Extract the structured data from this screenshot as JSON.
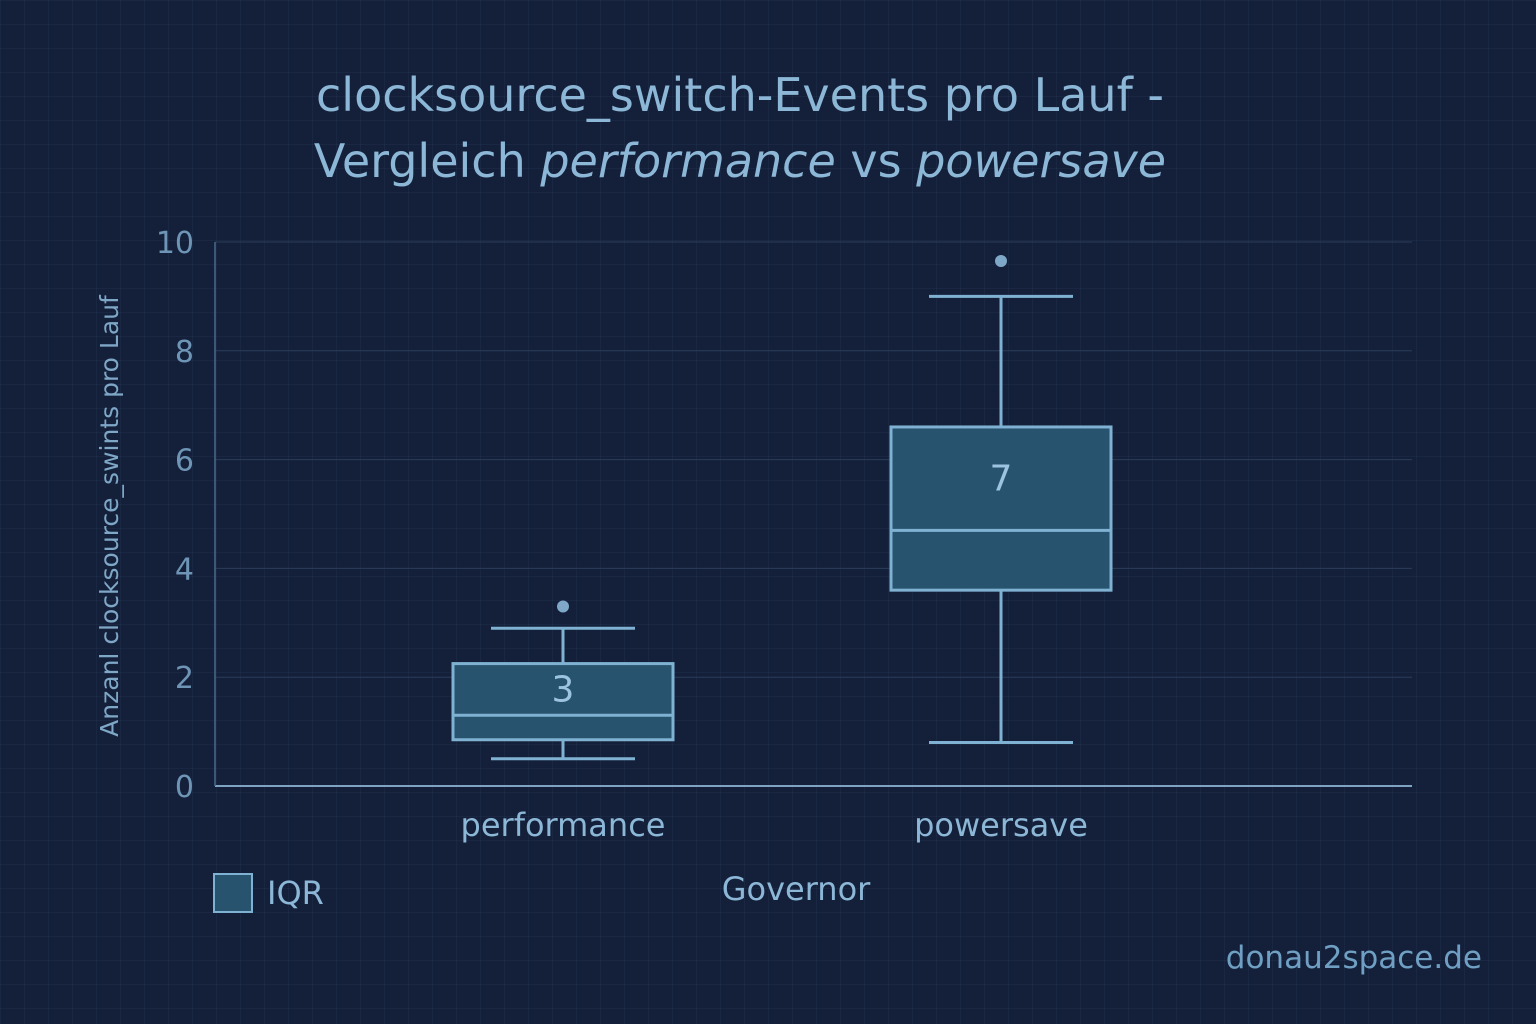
{
  "title": {
    "line1": "clocksource_switch-Events pro Lauf -",
    "line2_prefix": "Vergleich ",
    "line2_italic1": "performance",
    "line2_mid": " vs ",
    "line2_italic2": "powersave"
  },
  "legend": {
    "label": "IQR"
  },
  "watermark": "donau2space.de",
  "chart_data": {
    "type": "boxplot",
    "xlabel": "Governor",
    "ylabel": "Anzanl clocksource_swints pro Lauf",
    "ylim": [
      0,
      10
    ],
    "yticks": [
      0,
      2,
      4,
      6,
      8,
      10
    ],
    "grid": true,
    "categories": [
      "performance",
      "powersave"
    ],
    "boxes": [
      {
        "category": "performance",
        "whisker_low": 0.5,
        "q1": 0.85,
        "median": 1.3,
        "q3": 2.25,
        "whisker_high": 2.9,
        "outliers": [
          3.3
        ],
        "label": "3"
      },
      {
        "category": "powersave",
        "whisker_low": 0.8,
        "q1": 3.6,
        "median": 4.7,
        "q3": 6.6,
        "whisker_high": 9.0,
        "outliers": [
          9.65
        ],
        "label": "7"
      }
    ],
    "colors": {
      "box_fill": "#27536e",
      "box_stroke": "#7fb2d2",
      "grid": "#2b3d5a",
      "text": "#8cb7d6"
    }
  }
}
